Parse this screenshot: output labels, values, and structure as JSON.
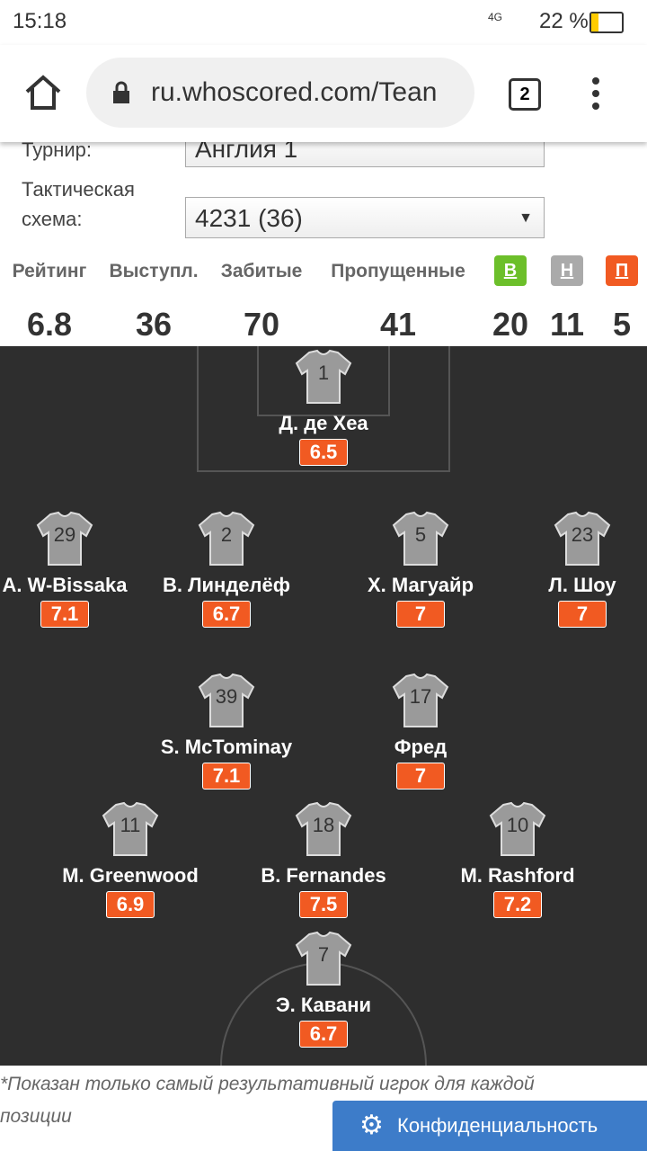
{
  "status_bar": {
    "time": "15:18",
    "network": "4G",
    "battery": "22 %"
  },
  "browser": {
    "url": "ru.whoscored.com/Tean",
    "tabs": "2"
  },
  "filters": [
    {
      "label": "Турнир:",
      "value": "Англия 1"
    },
    {
      "label": "Тактическая схема:",
      "value": "4231 (36)"
    }
  ],
  "stats": [
    {
      "label": "Рейтинг",
      "value": 6.8
    },
    {
      "label": "Выступл.",
      "value": 36
    },
    {
      "label": "Забитые",
      "value": 70
    },
    {
      "label": "Пропущенные",
      "value": 41
    },
    {
      "label": "В",
      "value": 20
    },
    {
      "label": "Н",
      "value": 11
    },
    {
      "label": "П",
      "value": 5
    }
  ],
  "players": [
    {
      "number": 1,
      "name": "Д. де Хеа",
      "rating": 6.5
    },
    {
      "number": 29,
      "name": "A. W-Bissaka",
      "rating": 7.1
    },
    {
      "number": 2,
      "name": "В. Линделёф",
      "rating": 6.7
    },
    {
      "number": 5,
      "name": "Х. Магуайр",
      "rating": 7
    },
    {
      "number": 23,
      "name": "Л. Шоу",
      "rating": 7
    },
    {
      "number": 39,
      "name": "S. McTominay",
      "rating": 7.1
    },
    {
      "number": 17,
      "name": "Фред",
      "rating": 7
    },
    {
      "number": 11,
      "name": "M. Greenwood",
      "rating": 6.9
    },
    {
      "number": 18,
      "name": "B. Fernandes",
      "rating": 7.5
    },
    {
      "number": 10,
      "name": "M. Rashford",
      "rating": 7.2
    },
    {
      "number": 7,
      "name": "Э. Кавани",
      "rating": 6.7
    }
  ],
  "footnote": "*Показан только самый результативный игрок для каждой позиции",
  "privacy_button": "Конфиденциальность"
}
